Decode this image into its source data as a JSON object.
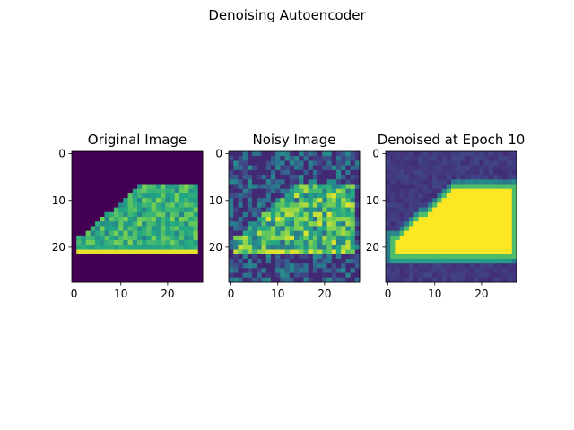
{
  "figure": {
    "suptitle": "Denoising Autoencoder"
  },
  "colormap": {
    "name": "viridis",
    "stops": [
      "#440154",
      "#414487",
      "#2a788e",
      "#22a884",
      "#7ad151",
      "#fde725"
    ]
  },
  "chart_data": [
    {
      "type": "heatmap",
      "title": "Original Image",
      "image_size": [
        28,
        28
      ],
      "xlim": [
        -0.5,
        27.5
      ],
      "ylim": [
        27.5,
        -0.5
      ],
      "xticks": [
        0,
        10,
        20
      ],
      "yticks": [
        0,
        10,
        20
      ],
      "content": "sneaker (original)"
    },
    {
      "type": "heatmap",
      "title": "Noisy Image",
      "image_size": [
        28,
        28
      ],
      "xlim": [
        -0.5,
        27.5
      ],
      "ylim": [
        27.5,
        -0.5
      ],
      "xticks": [
        0,
        10,
        20
      ],
      "yticks": [
        0,
        10,
        20
      ],
      "content": "sneaker with additive noise"
    },
    {
      "type": "heatmap",
      "title": "Denoised at Epoch 10",
      "image_size": [
        28,
        28
      ],
      "xlim": [
        -0.5,
        27.5
      ],
      "ylim": [
        27.5,
        -0.5
      ],
      "xticks": [
        0,
        10,
        20
      ],
      "yticks": [
        0,
        10,
        20
      ],
      "content": "smooth reconstructed sneaker"
    }
  ]
}
